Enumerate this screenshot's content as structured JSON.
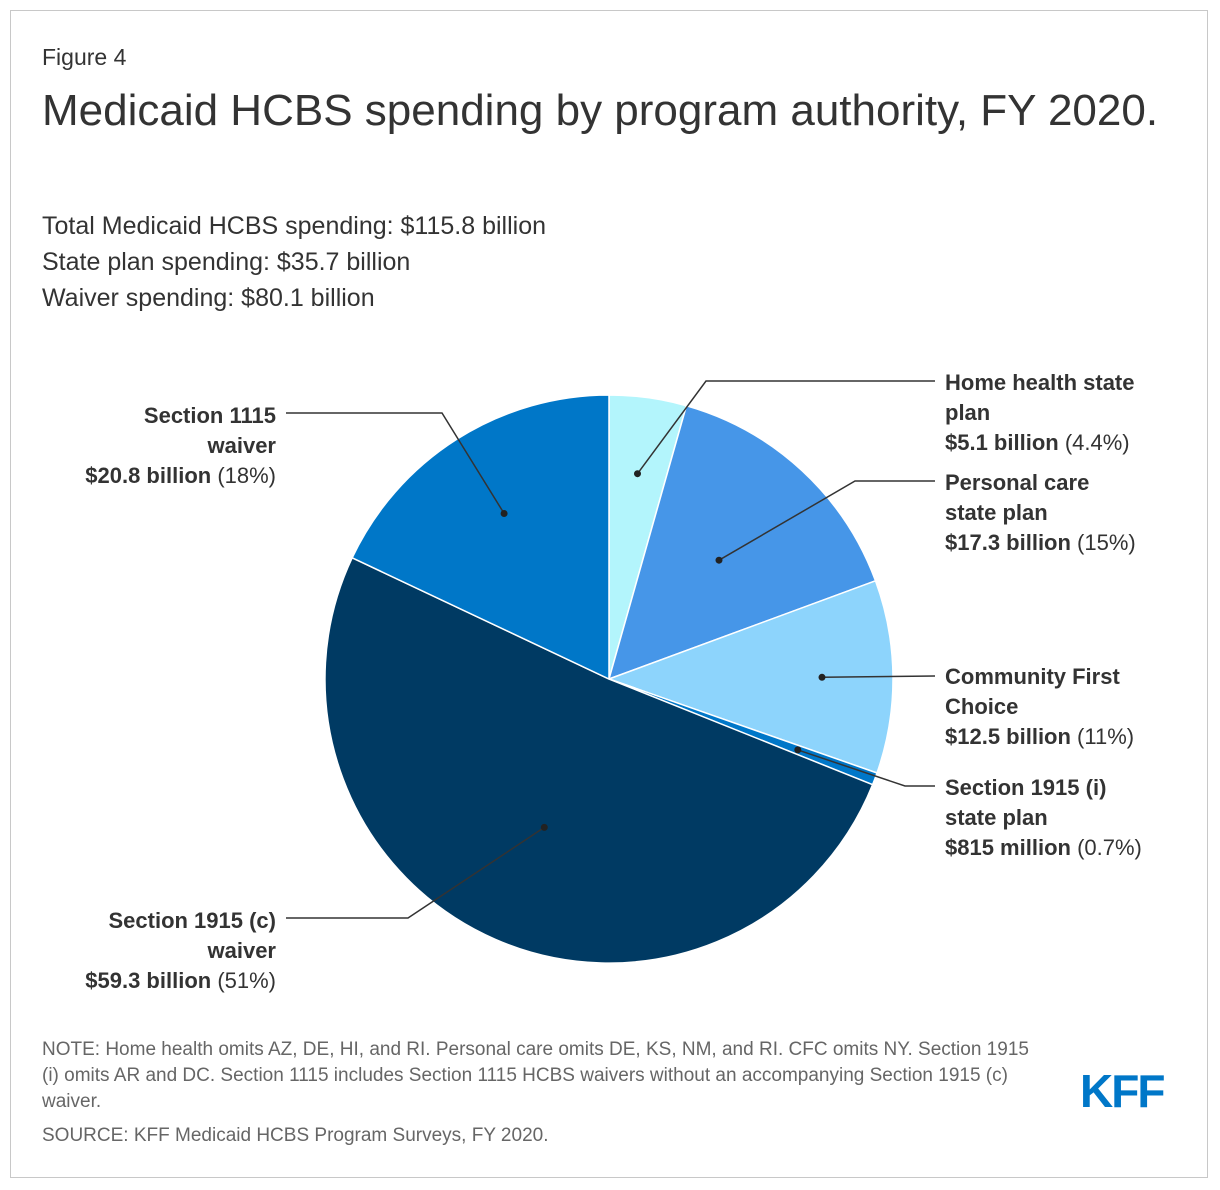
{
  "figure_label": "Figure 4",
  "title": "Medicaid HCBS spending by program authority, FY 2020.",
  "subtitles": [
    "Total Medicaid HCBS spending: $115.8 billion",
    "State plan spending: $35.7 billion",
    "Waiver spending: $80.1 billion"
  ],
  "note": "NOTE: Home health omits AZ, DE, HI, and RI. Personal care omits DE, KS, NM, and RI. CFC omits NY. Section 1915 (i) omits AR and DC. Section 1115 includes Section 1115 HCBS waivers without an accompanying Section 1915 (c) waiver.",
  "source": "SOURCE: KFF Medicaid HCBS Program Surveys, FY 2020.",
  "logo_text": "KFF",
  "chart_data": {
    "type": "pie",
    "title": "Medicaid HCBS spending by program authority, FY 2020.",
    "units": "billions of dollars",
    "start": "12 o'clock, clockwise",
    "slices": [
      {
        "name_lines": [
          "Home health state",
          "plan"
        ],
        "amount": "$5.1 billion",
        "pct": "(4.4%)",
        "value": 5.1,
        "percent": 4.4,
        "color": "#b3f5fc"
      },
      {
        "name_lines": [
          "Personal care",
          "state plan"
        ],
        "amount": "$17.3 billion",
        "pct": "(15%)",
        "value": 17.3,
        "percent": 15,
        "color": "#4696e8"
      },
      {
        "name_lines": [
          "Community First",
          "Choice"
        ],
        "amount": "$12.5 billion",
        "pct": "(11%)",
        "value": 12.5,
        "percent": 11,
        "color": "#8dd4fc"
      },
      {
        "name_lines": [
          "Section 1915 (i)",
          "state plan"
        ],
        "amount": "$815 million",
        "pct": "(0.7%)",
        "value": 0.815,
        "percent": 0.7,
        "color": "#0077c8"
      },
      {
        "name_lines": [
          "Section 1915 (c)",
          "waiver"
        ],
        "amount": "$59.3 billion",
        "pct": "(51%)",
        "value": 59.3,
        "percent": 51,
        "color": "#003a63"
      },
      {
        "name_lines": [
          "Section 1115",
          "waiver"
        ],
        "amount": "$20.8 billion",
        "pct": "(18%)",
        "value": 20.8,
        "percent": 18,
        "color": "#0077c8"
      }
    ]
  }
}
